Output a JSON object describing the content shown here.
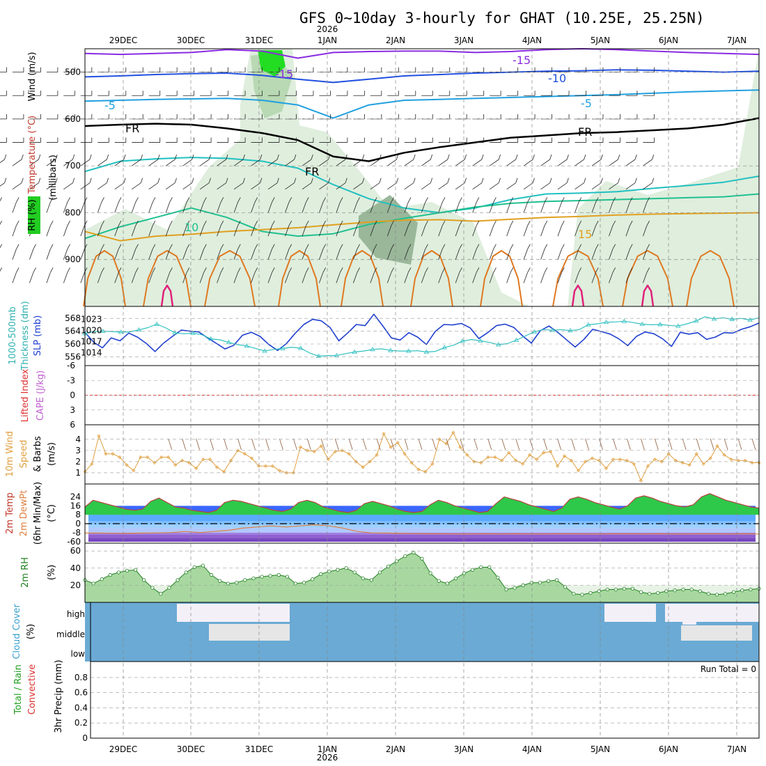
{
  "title": "GFS 0~10day 3-hourly for GHAT (10.25E, 25.25N)",
  "year_label": "2026",
  "date_labels": [
    "29DEC",
    "30DEC",
    "31DEC",
    "1JAN",
    "2JAN",
    "3JAN",
    "4JAN",
    "5JAN",
    "6JAN",
    "7JAN"
  ],
  "chart_data": [
    {
      "type": "line",
      "panel": "pressure-level cross-section",
      "y_axis": "(millibars)",
      "yticks": [
        500,
        600,
        700,
        800,
        900
      ],
      "ylim": [
        1000,
        450
      ],
      "left_labels": [
        "RH (%)",
        "Temperature (°C)",
        "Wind (m/s)"
      ],
      "contour_labels": [
        "-15",
        "-15",
        "-10",
        "-5",
        "-5",
        "FR",
        "FR",
        "FR",
        "10",
        "15"
      ],
      "colors": {
        "rh_light": "#dfeedd",
        "rh_mid": "#b8d9b3",
        "rh_dark": "#9ab79a",
        "rh_bright": "#22dd22",
        "minus15": "#8a2be2",
        "minus10": "#2050e0",
        "minus5": "#20a0e0",
        "freezing": "#000000",
        "plus5": "#20c0c0",
        "plus10": "#20c090",
        "plus15": "#e0a020",
        "plus20": "#e07820",
        "plus25": "#e0207a"
      }
    },
    {
      "type": "line",
      "panel": "SLP and thickness",
      "left_labels": [
        "1000-500mb",
        "Thickness (dm)",
        "SLP (mb)"
      ],
      "thickness_ticks": [
        556,
        560,
        564,
        568
      ],
      "slp_ticks": [
        1014,
        1017,
        1020,
        1023
      ],
      "series": [
        {
          "name": "SLP (mb)",
          "color": "#1f3fd0",
          "values": [
            1019.5,
            1016.8,
            1015.3,
            1018.0,
            1017.2,
            1019.3,
            1018.2,
            1016.5,
            1014.3,
            1016.6,
            1018.4,
            1020.1,
            1019.8,
            1019.6,
            1018.0,
            1016.5,
            1015.0,
            1016.0,
            1018.7,
            1019.5,
            1018.4,
            1016.2,
            1014.6,
            1016.4,
            1019.2,
            1021.6,
            1023.0,
            1022.6,
            1020.8,
            1017.2,
            1019.3,
            1021.6,
            1021.3,
            1024.4,
            1021.3,
            1018.0,
            1017.4,
            1019.4,
            1018.2,
            1016.2,
            1019.7,
            1021.6,
            1021.5,
            1021.9,
            1020.7,
            1017.8,
            1019.4,
            1021.3,
            1021.7,
            1020.8,
            1018.5,
            1016.6,
            1019.9,
            1021.2,
            1019.5,
            1017.5,
            1015.5,
            1017.6,
            1020.3,
            1019.7,
            1019.0,
            1017.7,
            1015.9,
            1018.4,
            1019.6,
            1019.1,
            1017.7,
            1015.7,
            1019.5,
            1019.0,
            1019.4,
            1017.6,
            1018.2,
            1019.4,
            1019.3,
            1020.3,
            1021.0,
            1022.0
          ]
        },
        {
          "name": "1000-500mb Thickness (dm)",
          "color": "#30c0c0",
          "values": [
            563.3,
            563.9,
            564.0,
            563.9,
            563.7,
            563.8,
            564.4,
            565.1,
            566.2,
            565.0,
            563.5,
            563.2,
            563.4,
            562.9,
            561.6,
            561.3,
            560.5,
            559.8,
            559.4,
            558.6,
            557.8,
            558.3,
            558.6,
            559.0,
            558.7,
            557.2,
            556.2,
            556.4,
            556.4,
            557.0,
            557.5,
            557.8,
            558.3,
            558.5,
            558.0,
            557.8,
            557.8,
            557.9,
            557.5,
            557.7,
            558.9,
            559.6,
            560.9,
            561.4,
            561.0,
            560.5,
            559.8,
            560.1,
            561.2,
            562.5,
            563.8,
            564.5,
            564.3,
            564.5,
            564.2,
            564.5,
            566.0,
            566.3,
            566.8,
            566.9,
            567.1,
            566.7,
            566.2,
            566.0,
            566.1,
            565.8,
            565.6,
            566.3,
            567.2,
            568.5,
            567.8,
            568.2,
            567.7,
            568.0,
            567.5,
            568.2
          ]
        }
      ]
    },
    {
      "type": "line",
      "panel": "CAPE and lifted index",
      "left_labels": [
        "Lifted Index",
        "CAPE (J/kg)"
      ],
      "yticks": [
        "-6",
        "-3",
        "0",
        "3",
        "6"
      ],
      "ylim": [
        6,
        -6
      ],
      "series": [
        {
          "name": "Lifted Index",
          "color": "#e03030",
          "values": [
            0
          ]
        }
      ]
    },
    {
      "type": "line",
      "panel": "10m wind",
      "left_labels": [
        "10m Wind",
        "Speed",
        "& Barbs",
        "(m/s)"
      ],
      "yticks": [
        1,
        2,
        3,
        4
      ],
      "series": [
        {
          "name": "10m Wind Speed (m/s)",
          "color": "#e0a040",
          "values": [
            1.1,
            1.8,
            4.3,
            2.7,
            2.7,
            2.4,
            1.7,
            1.2,
            2.4,
            2.4,
            1.9,
            2.4,
            2.4,
            1.7,
            2.1,
            1.9,
            1.4,
            2.2,
            2.2,
            1.5,
            1.1,
            2.1,
            3.0,
            2.7,
            2.3,
            1.6,
            1.6,
            1.6,
            1.2,
            1.0,
            1.0,
            3.3,
            3.0,
            2.9,
            3.4,
            2.2,
            2.9,
            3.0,
            2.7,
            2.0,
            1.5,
            2.0,
            2.6,
            4.5,
            3.3,
            3.7,
            2.7,
            1.9,
            1.3,
            1.1,
            1.8,
            4.0,
            3.6,
            4.6,
            3.3,
            2.6,
            2.0,
            1.9,
            2.4,
            2.4,
            2.1,
            2.8,
            2.1,
            1.8,
            2.6,
            2.2,
            2.8,
            2.9,
            1.6,
            2.5,
            2.1,
            1.2,
            2.0,
            2.3,
            2.1,
            1.4,
            2.2,
            2.2,
            2.1,
            1.8,
            0.3,
            1.6,
            2.2,
            2.0,
            2.7,
            2.1,
            1.9,
            1.7,
            2.7,
            1.8,
            2.3,
            3.4,
            2.6,
            2.2,
            2.1,
            2.1,
            1.9,
            1.9
          ]
        }
      ]
    },
    {
      "type": "area",
      "panel": "2m temperature",
      "left_labels": [
        "2m Temp",
        "2m DewPt",
        "(6hr Min/Max)",
        "(°C)"
      ],
      "yticks": [
        -60,
        -8,
        0,
        8,
        16,
        24
      ],
      "series": [
        {
          "name": "2m Temp (°C)",
          "color": "#b84040",
          "values": [
            15,
            21,
            19,
            17,
            15,
            13,
            12,
            13,
            20,
            23,
            19,
            15,
            14,
            12,
            11,
            10,
            12,
            19,
            21,
            20,
            18,
            16,
            14,
            12,
            11,
            13,
            19,
            21,
            19,
            15,
            13,
            11,
            10,
            12,
            18,
            20,
            18,
            16,
            13,
            11,
            10,
            11,
            17,
            21,
            19,
            16,
            14,
            12,
            10,
            11,
            18,
            24,
            22,
            20,
            17,
            15,
            13,
            11,
            14,
            22,
            24,
            22,
            19,
            17,
            15,
            13,
            16,
            23,
            25,
            23,
            20,
            18,
            16,
            15,
            17,
            24,
            27,
            24,
            21,
            19,
            17,
            15,
            14
          ]
        },
        {
          "name": "2m DewPt (°C)",
          "color": "#e08040",
          "values": [
            -10,
            -10,
            -11,
            -12,
            -10,
            -9,
            -8,
            -7,
            -8,
            -7,
            -6,
            -4,
            -3,
            -2,
            -3,
            -2,
            -1,
            -2,
            -4,
            -7,
            -9,
            -10,
            -12,
            -13,
            -14,
            -14,
            -15,
            -15,
            -14,
            -15,
            -14,
            -15,
            -15,
            -14,
            -14,
            -15,
            -15,
            -14,
            -14,
            -15,
            -14,
            -15,
            -15,
            -14,
            -14,
            -15,
            -14,
            -15
          ]
        }
      ]
    },
    {
      "type": "area",
      "panel": "2m RH",
      "left_labels": [
        "2m RH",
        "(%)"
      ],
      "yticks": [
        20,
        40,
        60
      ],
      "series": [
        {
          "name": "2m RH (%)",
          "color": "#208020",
          "values": [
            26,
            22,
            27,
            32,
            35,
            37,
            38,
            26,
            17,
            10,
            17,
            26,
            35,
            41,
            43,
            32,
            25,
            22,
            23,
            26,
            28,
            30,
            31,
            32,
            30,
            22,
            23,
            27,
            33,
            36,
            38,
            40,
            35,
            28,
            26,
            35,
            42,
            48,
            54,
            58,
            51,
            34,
            25,
            22,
            28,
            34,
            38,
            41,
            41,
            29,
            15,
            17,
            20,
            23,
            23,
            25,
            26,
            18,
            10,
            9,
            11,
            13,
            15,
            15,
            16,
            16,
            12,
            10,
            11,
            13,
            14,
            15,
            15,
            13,
            10,
            9,
            10,
            12,
            14,
            15,
            16
          ]
        }
      ]
    },
    {
      "type": "heatmap",
      "panel": "cloud cover",
      "left_labels": [
        "Cloud Cover",
        "(%)"
      ],
      "levels": [
        "high",
        "middle",
        "low"
      ],
      "colors": {
        "clear": "#6aaad4",
        "cloud_high": "#f4f0f8",
        "cloud_mid": "#e6e6e6"
      }
    },
    {
      "type": "bar",
      "panel": "3hr precipitation",
      "left_labels": [
        "Total / Rain",
        "Convective",
        "3hr Precip (mm)"
      ],
      "yticks": [
        "0",
        "0.2",
        "0.4",
        "0.6",
        "0.8"
      ],
      "annotation": "Run Total = 0",
      "series": [
        {
          "name": "Total / Rain",
          "values": [
            0
          ]
        }
      ]
    }
  ]
}
